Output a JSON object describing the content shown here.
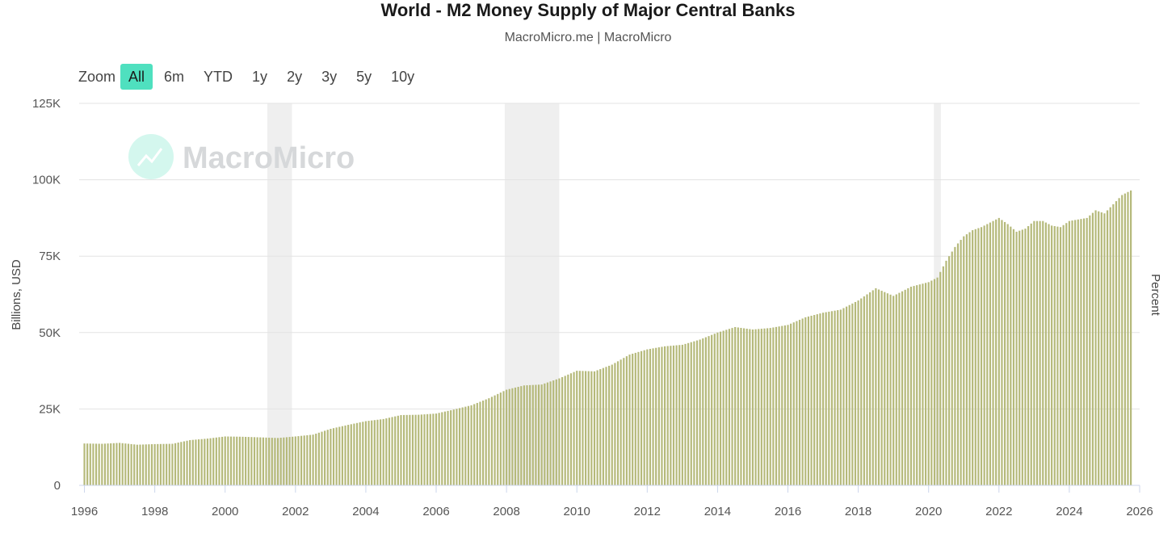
{
  "zoom": {
    "label": "Zoom",
    "options": [
      "All",
      "6m",
      "YTD",
      "1y",
      "2y",
      "3y",
      "5y",
      "10y"
    ],
    "selected": "All"
  },
  "watermark": {
    "text": "MacroMicro"
  },
  "colors": {
    "bar": "#b5b97a",
    "recession": "#efefef",
    "zoom_active": "#4fe0bf",
    "watermark_icon": "#d4f7ee"
  },
  "chart_data": {
    "type": "bar",
    "title": "World - M2 Money Supply of Major Central Banks",
    "subtitle": "MacroMicro.me | MacroMicro",
    "ylabel": "Billions, USD",
    "ylabel_right": "Percent",
    "ylim": [
      0,
      125000
    ],
    "yticks": [
      0,
      25000,
      50000,
      75000,
      100000,
      125000
    ],
    "ytick_labels": [
      "0",
      "25K",
      "50K",
      "75K",
      "100K",
      "125K"
    ],
    "xlim": [
      1995.85,
      2026.0
    ],
    "xticks": [
      1996,
      1998,
      2000,
      2002,
      2004,
      2006,
      2008,
      2010,
      2012,
      2014,
      2016,
      2018,
      2020,
      2022,
      2024,
      2026
    ],
    "grid": true,
    "legend": "none",
    "frequency": "monthly",
    "recessions": [
      [
        2001.2,
        2001.9
      ],
      [
        2007.95,
        2009.5
      ],
      [
        2020.15,
        2020.35
      ]
    ],
    "series": [
      {
        "x": [
          1996.0,
          1996.5,
          1997.0,
          1997.5,
          1998.0,
          1998.5,
          1999.0,
          1999.5,
          2000.0,
          2000.5,
          2001.0,
          2001.5,
          2002.0,
          2002.5,
          2003.0,
          2003.5,
          2004.0,
          2004.5,
          2005.0,
          2005.5,
          2006.0,
          2006.5,
          2007.0,
          2007.5,
          2008.0,
          2008.5,
          2009.0,
          2009.5,
          2010.0,
          2010.5,
          2011.0,
          2011.5,
          2012.0,
          2012.5,
          2013.0,
          2013.5,
          2014.0,
          2014.5,
          2015.0,
          2015.5,
          2016.0,
          2016.5,
          2017.0,
          2017.5,
          2018.0,
          2018.5,
          2019.0,
          2019.5,
          2020.0,
          2020.25,
          2020.5,
          2020.75,
          2021.0,
          2021.25,
          2021.5,
          2021.75,
          2022.0,
          2022.25,
          2022.5,
          2022.75,
          2023.0,
          2023.25,
          2023.5,
          2023.75,
          2024.0,
          2024.25,
          2024.5,
          2024.75,
          2025.0,
          2025.25,
          2025.5,
          2025.75
        ],
        "values": [
          13700,
          13600,
          13900,
          13300,
          13500,
          13600,
          14800,
          15300,
          16000,
          15900,
          15700,
          15500,
          16000,
          16600,
          18500,
          19800,
          21000,
          21700,
          23000,
          23100,
          23500,
          24800,
          26200,
          28500,
          31300,
          32700,
          33000,
          35000,
          37500,
          37300,
          39500,
          42800,
          44500,
          45500,
          46000,
          47700,
          50000,
          51800,
          51000,
          51500,
          52500,
          55000,
          56500,
          57500,
          60500,
          64500,
          62000,
          65000,
          66500,
          68000,
          73500,
          78000,
          81500,
          83500,
          84500,
          86000,
          87500,
          85500,
          83000,
          84000,
          86500,
          86500,
          85000,
          84500,
          86500,
          87000,
          87500,
          90000,
          89000,
          92000,
          95000,
          96500
        ]
      }
    ]
  }
}
